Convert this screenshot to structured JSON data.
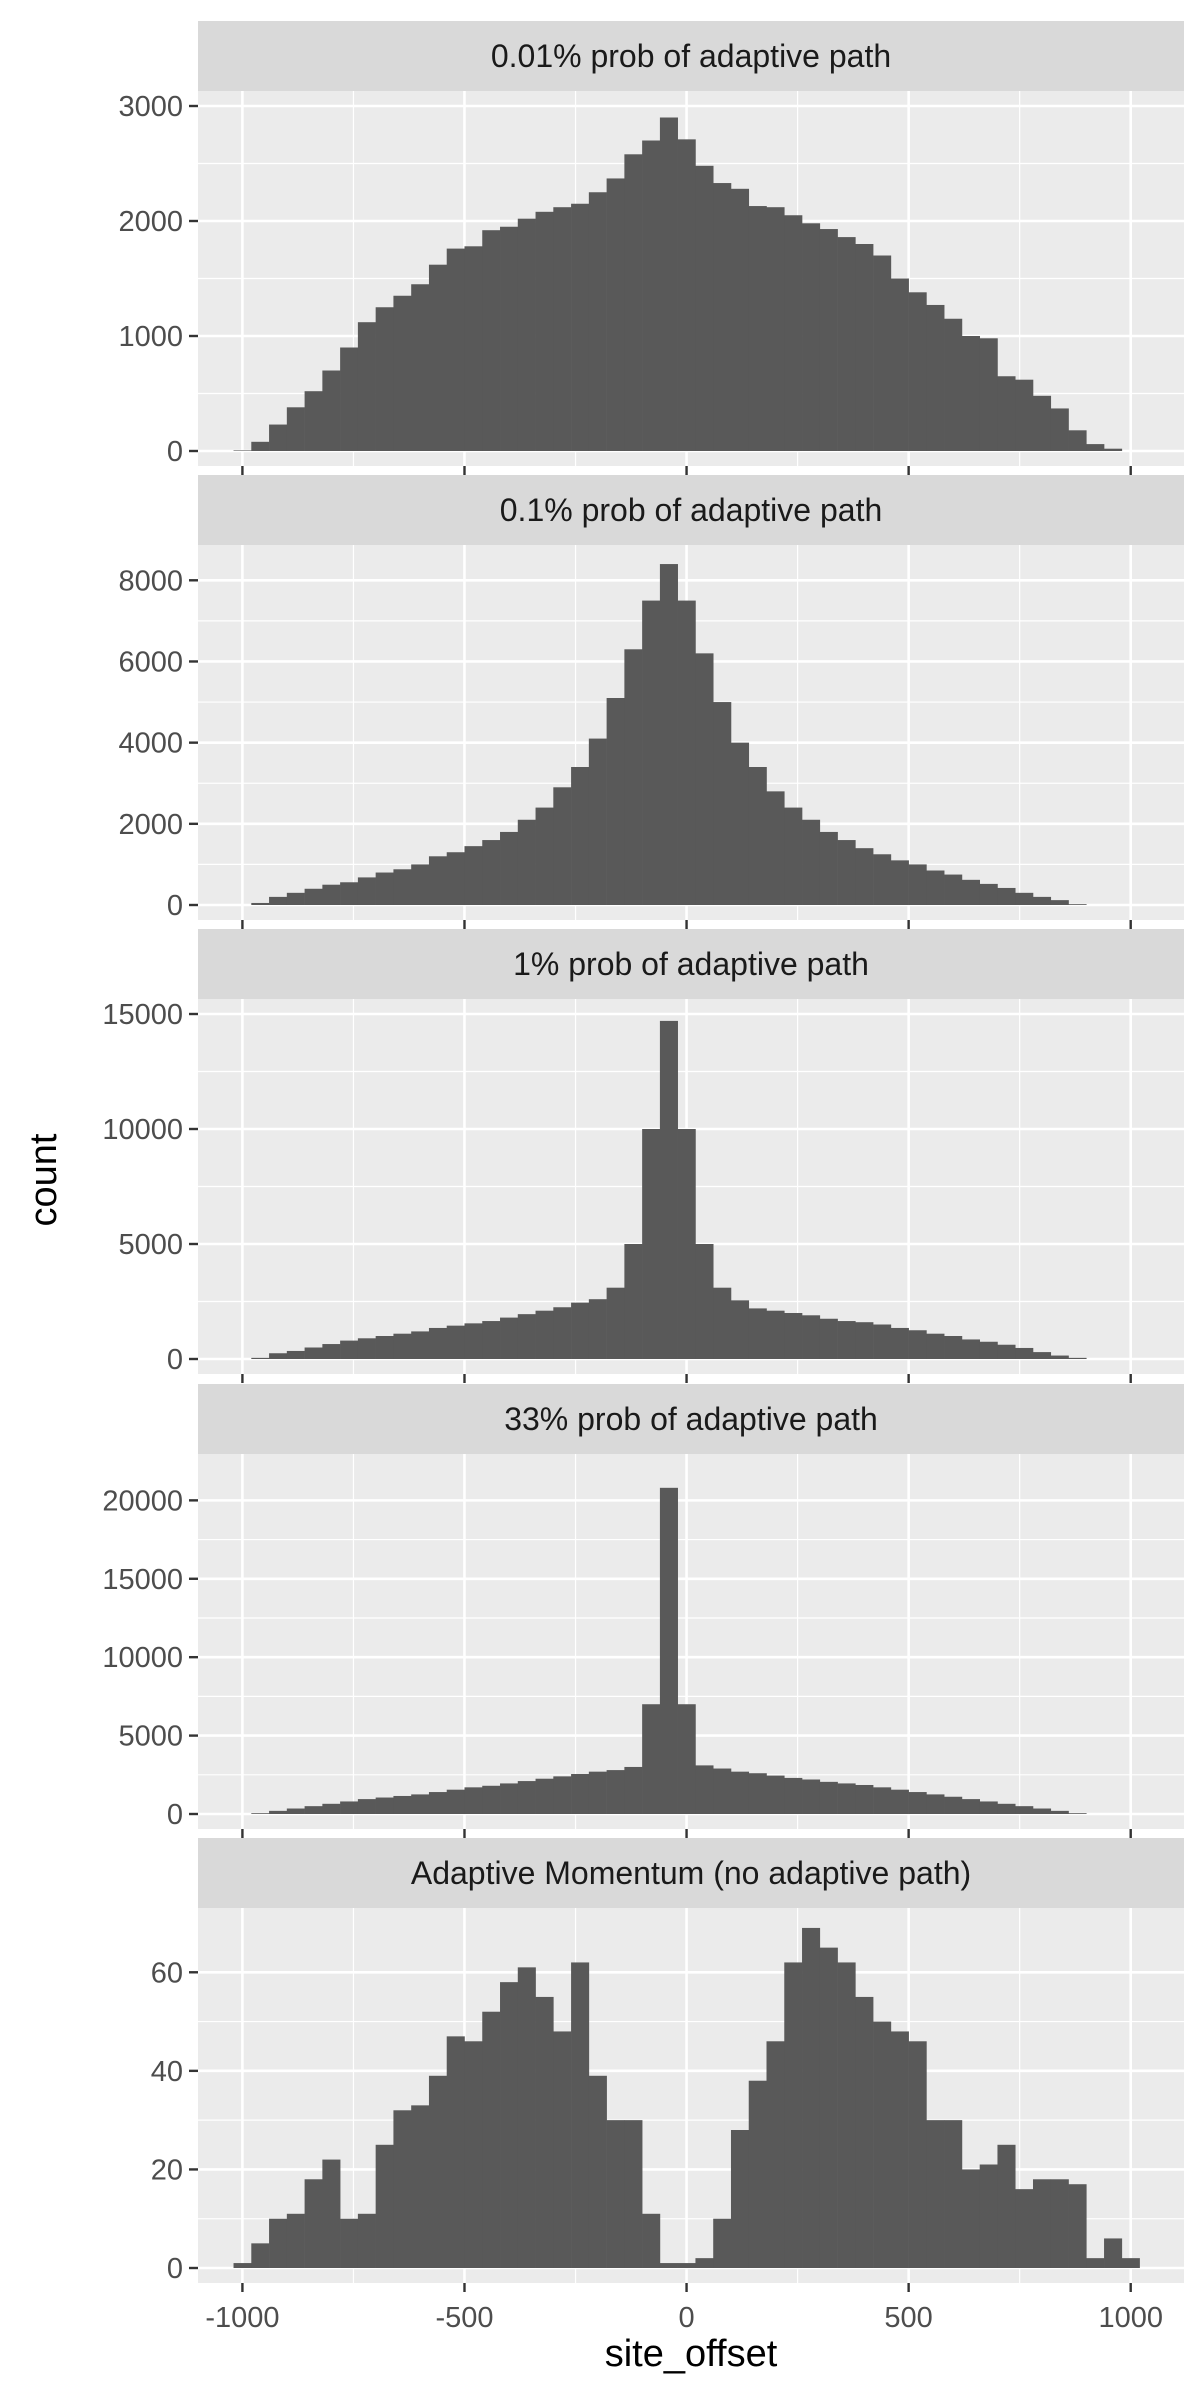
{
  "colors": {
    "panel_bg": "#ebebeb",
    "strip_bg": "#d9d9d9",
    "grid": "#ffffff",
    "bar": "#595959",
    "tick": "#333333"
  },
  "chart_data": {
    "type": "bar",
    "style": "faceted histogram",
    "xlabel": "site_offset",
    "ylabel": "count",
    "xlim": [
      -1100,
      1120
    ],
    "x_ticks": [
      -1000,
      -500,
      0,
      500,
      1000
    ],
    "x_tick_labels": [
      "-1000",
      "-500",
      "0",
      "500",
      "1000"
    ],
    "bin_width": 40,
    "bin_start": -1020,
    "grid": true,
    "legend": "none",
    "panels": [
      {
        "strip": "0.01% prob of adaptive path",
        "ylim": [
          0,
          3000
        ],
        "y_ticks": [
          0,
          1000,
          2000,
          3000
        ],
        "y_tick_labels": [
          "0",
          "1000",
          "2000",
          "3000"
        ],
        "counts": [
          5,
          80,
          230,
          380,
          520,
          700,
          900,
          1120,
          1250,
          1350,
          1450,
          1620,
          1760,
          1780,
          1920,
          1950,
          2020,
          2080,
          2120,
          2150,
          2250,
          2370,
          2580,
          2700,
          2900,
          2710,
          2480,
          2330,
          2280,
          2130,
          2120,
          2050,
          1980,
          1930,
          1860,
          1800,
          1700,
          1500,
          1380,
          1270,
          1150,
          1000,
          980,
          650,
          620,
          480,
          370,
          180,
          60,
          20
        ]
      },
      {
        "strip": "0.1% prob of adaptive path",
        "ylim": [
          0,
          8500
        ],
        "y_ticks": [
          0,
          2000,
          4000,
          6000,
          8000
        ],
        "y_tick_labels": [
          "0",
          "2000",
          "4000",
          "6000",
          "8000"
        ],
        "counts": [
          0,
          50,
          200,
          300,
          400,
          500,
          560,
          680,
          800,
          880,
          1000,
          1200,
          1300,
          1450,
          1600,
          1800,
          2100,
          2400,
          2900,
          3400,
          4100,
          5100,
          6300,
          7500,
          8400,
          7500,
          6200,
          5000,
          4000,
          3400,
          2800,
          2400,
          2100,
          1800,
          1600,
          1400,
          1250,
          1100,
          1000,
          850,
          750,
          620,
          520,
          420,
          300,
          200,
          120,
          20,
          0,
          0
        ]
      },
      {
        "strip": "1% prob of adaptive path",
        "ylim": [
          0,
          15000
        ],
        "y_ticks": [
          0,
          5000,
          10000,
          15000
        ],
        "y_tick_labels": [
          "0",
          "5000",
          "10000",
          "15000"
        ],
        "counts": [
          0,
          50,
          250,
          350,
          500,
          650,
          800,
          900,
          1000,
          1100,
          1200,
          1350,
          1450,
          1550,
          1650,
          1800,
          1950,
          2100,
          2250,
          2450,
          2600,
          3100,
          5000,
          10000,
          14700,
          10000,
          5000,
          3100,
          2550,
          2200,
          2100,
          2000,
          1900,
          1750,
          1650,
          1600,
          1500,
          1350,
          1250,
          1100,
          1000,
          850,
          750,
          620,
          480,
          300,
          150,
          50,
          0,
          0
        ]
      },
      {
        "strip": "33% prob of adaptive path",
        "ylim": [
          0,
          22000
        ],
        "y_ticks": [
          0,
          5000,
          10000,
          15000,
          20000
        ],
        "y_tick_labels": [
          "0",
          "5000",
          "10000",
          "15000",
          "20000"
        ],
        "counts": [
          0,
          50,
          200,
          350,
          500,
          650,
          800,
          950,
          1050,
          1150,
          1250,
          1400,
          1550,
          1700,
          1800,
          1950,
          2100,
          2250,
          2400,
          2550,
          2700,
          2800,
          3000,
          7000,
          20800,
          7000,
          3100,
          2900,
          2700,
          2600,
          2450,
          2300,
          2200,
          2050,
          1950,
          1850,
          1700,
          1550,
          1400,
          1250,
          1100,
          950,
          800,
          650,
          500,
          350,
          200,
          50,
          0,
          0
        ]
      },
      {
        "strip": "Adaptive Momentum (no adaptive path)",
        "ylim": [
          0,
          70
        ],
        "y_ticks": [
          0,
          20,
          40,
          60
        ],
        "y_tick_labels": [
          "0",
          "20",
          "40",
          "60"
        ],
        "counts": [
          1,
          5,
          10,
          11,
          18,
          22,
          10,
          11,
          25,
          32,
          33,
          39,
          47,
          46,
          52,
          58,
          61,
          55,
          48,
          62,
          39,
          30,
          30,
          11,
          1,
          1,
          2,
          10,
          28,
          38,
          46,
          62,
          69,
          65,
          62,
          55,
          50,
          48,
          46,
          30,
          30,
          20,
          21,
          25,
          16,
          18,
          18,
          17,
          2,
          6,
          2
        ]
      }
    ]
  }
}
